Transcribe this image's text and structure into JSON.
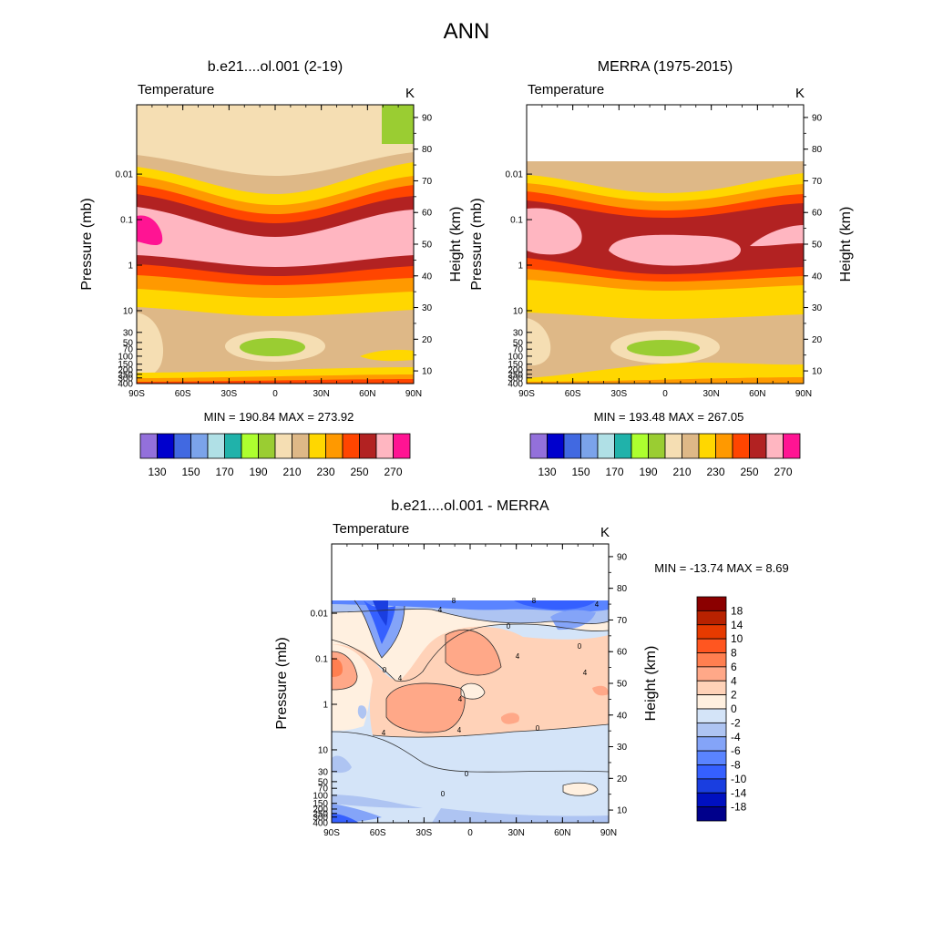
{
  "title": "ANN",
  "colors": {
    "abs_palette": [
      "#9370db",
      "#0000cd",
      "#4169e1",
      "#7ba3ea",
      "#b0e0e6",
      "#20b2aa",
      "#adff2f",
      "#9acd32",
      "#f5deb3",
      "#deb887",
      "#ffd700",
      "#ff9900",
      "#ff4500",
      "#b22222",
      "#ffb6c1",
      "#ff1493"
    ],
    "diff_palette": [
      "#00008b",
      "#0010c0",
      "#1a3ee0",
      "#3560ff",
      "#5a84ff",
      "#84a4f8",
      "#aec4f2",
      "#d4e4f8",
      "#fff0e0",
      "#ffd2b8",
      "#ffa888",
      "#ff7f50",
      "#ff5620",
      "#e63a00",
      "#b82200",
      "#8b0000"
    ]
  },
  "chart_data": [
    {
      "type": "heatmap",
      "id": "model",
      "title": "b.e21....ol.001 (2-19)",
      "variable": "Temperature",
      "units": "K",
      "ylabel": "Pressure (mb)",
      "ylabel_right": "Height (km)",
      "x_ticks": [
        "90S",
        "60S",
        "30S",
        "0",
        "30N",
        "60N",
        "90N"
      ],
      "x_values": [
        -90,
        -60,
        -30,
        0,
        30,
        60,
        90
      ],
      "y_ticks": [
        "0.01",
        "0.1",
        "1",
        "10",
        "30",
        "50",
        "70",
        "100",
        "150",
        "200",
        "250",
        "300",
        "400"
      ],
      "y_values": [
        0.01,
        0.1,
        1,
        10,
        30,
        50,
        70,
        100,
        150,
        200,
        250,
        300,
        400
      ],
      "height_ticks": [
        "90",
        "80",
        "70",
        "60",
        "50",
        "40",
        "30",
        "20",
        "10"
      ],
      "height_values": [
        90,
        80,
        70,
        60,
        50,
        40,
        30,
        20,
        10
      ],
      "stats": "MIN = 190.84  MAX = 273.92",
      "min": 190.84,
      "max": 273.92,
      "colorbar_labels": [
        "130",
        "150",
        "170",
        "190",
        "210",
        "230",
        "250",
        "270"
      ],
      "colorbar_levels": [
        130,
        150,
        170,
        190,
        210,
        230,
        250,
        270
      ],
      "top_pressure_mb": 0.001
    },
    {
      "type": "heatmap",
      "id": "obs",
      "title": "MERRA (1975-2015)",
      "variable": "Temperature",
      "units": "K",
      "ylabel": "Pressure (mb)",
      "ylabel_right": "Height (km)",
      "x_ticks": [
        "90S",
        "60S",
        "30S",
        "0",
        "30N",
        "60N",
        "90N"
      ],
      "x_values": [
        -90,
        -60,
        -30,
        0,
        30,
        60,
        90
      ],
      "y_ticks": [
        "0.01",
        "0.1",
        "1",
        "10",
        "30",
        "50",
        "70",
        "100",
        "150",
        "200",
        "250",
        "300",
        "400"
      ],
      "y_values": [
        0.01,
        0.1,
        1,
        10,
        30,
        50,
        70,
        100,
        150,
        200,
        250,
        300,
        400
      ],
      "height_ticks": [
        "90",
        "80",
        "70",
        "60",
        "50",
        "40",
        "30",
        "20",
        "10"
      ],
      "height_values": [
        90,
        80,
        70,
        60,
        50,
        40,
        30,
        20,
        10
      ],
      "stats": "MIN = 193.48  MAX = 267.05",
      "min": 193.48,
      "max": 267.05,
      "colorbar_labels": [
        "130",
        "150",
        "170",
        "190",
        "210",
        "230",
        "250",
        "270"
      ],
      "colorbar_levels": [
        130,
        150,
        170,
        190,
        210,
        230,
        250,
        270
      ],
      "top_pressure_mb": 0.0039
    },
    {
      "type": "heatmap",
      "id": "diff",
      "title": "b.e21....ol.001 - MERRA",
      "variable": "Temperature",
      "units": "K",
      "ylabel": "Pressure (mb)",
      "ylabel_right": "Height (km)",
      "x_ticks": [
        "90S",
        "60S",
        "30S",
        "0",
        "30N",
        "60N",
        "90N"
      ],
      "x_values": [
        -90,
        -60,
        -30,
        0,
        30,
        60,
        90
      ],
      "y_ticks": [
        "0.01",
        "0.1",
        "1",
        "10",
        "30",
        "50",
        "70",
        "100",
        "150",
        "200",
        "250",
        "300",
        "400"
      ],
      "y_values": [
        0.01,
        0.1,
        1,
        10,
        30,
        50,
        70,
        100,
        150,
        200,
        250,
        300,
        400
      ],
      "height_ticks": [
        "90",
        "80",
        "70",
        "60",
        "50",
        "40",
        "30",
        "20",
        "10"
      ],
      "height_values": [
        90,
        80,
        70,
        60,
        50,
        40,
        30,
        20,
        10
      ],
      "stats": "MIN = -13.74  MAX =   8.69",
      "min": -13.74,
      "max": 8.69,
      "colorbar_labels": [
        "18",
        "14",
        "10",
        "8",
        "6",
        "4",
        "2",
        "0",
        "-2",
        "-4",
        "-6",
        "-8",
        "-10",
        "-14",
        "-18"
      ],
      "colorbar_levels": [
        18,
        14,
        10,
        8,
        6,
        4,
        2,
        0,
        -2,
        -4,
        -6,
        -8,
        -10,
        -14,
        -18
      ],
      "contour_labels": [
        "8",
        "8",
        "4",
        "4",
        "0",
        "0",
        "4",
        "0",
        "4",
        "4",
        "4",
        "4",
        "4",
        "0",
        "0",
        "0"
      ],
      "top_pressure_mb": 0.0039
    }
  ]
}
